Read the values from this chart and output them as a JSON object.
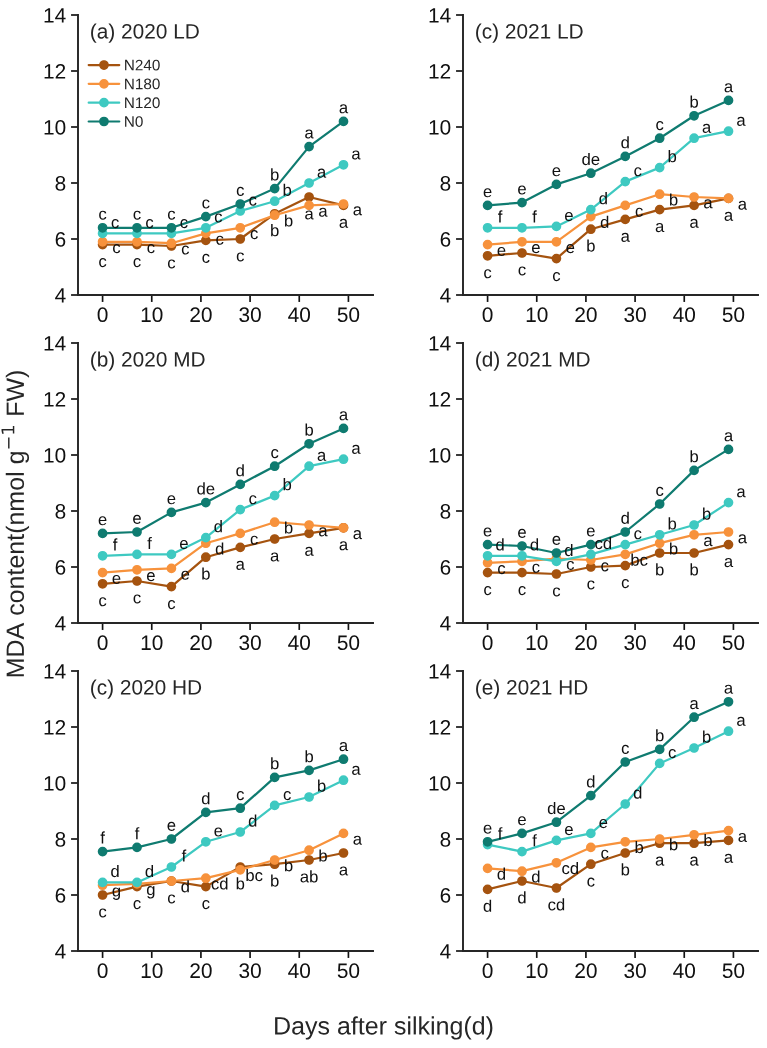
{
  "chart_data": [
    {
      "type": "line",
      "title": "(a) 2020 LD",
      "x": [
        0,
        7,
        14,
        21,
        28,
        35,
        42,
        49
      ],
      "xlim": [
        -5,
        55
      ],
      "xticks": [
        0,
        10,
        20,
        30,
        40,
        50
      ],
      "ylim": [
        4,
        14
      ],
      "yticks": [
        4,
        6,
        8,
        10,
        12,
        14
      ],
      "marker": "circle",
      "line_style": "solid",
      "legend": "top left",
      "grid": false,
      "series": [
        {
          "name": "N240",
          "color": "#a5530f",
          "values": [
            5.8,
            5.8,
            5.75,
            5.95,
            6.0,
            6.9,
            7.5,
            7.2
          ],
          "value_labels": [
            "c",
            "c",
            "c",
            "c",
            "c",
            "b",
            "a",
            "a"
          ]
        },
        {
          "name": "N180",
          "color": "#f7923c",
          "values": [
            5.9,
            5.9,
            5.85,
            6.2,
            6.4,
            6.85,
            7.2,
            7.25
          ],
          "value_labels": [
            "c",
            "c",
            "c",
            "c",
            "c",
            "b",
            "a",
            "a"
          ]
        },
        {
          "name": "N120",
          "color": "#3ec9c1",
          "values": [
            6.2,
            6.2,
            6.2,
            6.4,
            7.0,
            7.35,
            8.0,
            8.65
          ],
          "value_labels": [
            "c",
            "c",
            "c",
            "c",
            "c",
            "b",
            "a",
            "a"
          ]
        },
        {
          "name": "N0",
          "color": "#0f7b70",
          "values": [
            6.4,
            6.4,
            6.4,
            6.8,
            7.25,
            7.8,
            9.3,
            10.2
          ],
          "value_labels": [
            "c",
            "c",
            "c",
            "c",
            "c",
            "b",
            "a",
            "a"
          ]
        }
      ]
    },
    {
      "type": "line",
      "title": "(c) 2021 LD",
      "x": [
        0,
        7,
        14,
        21,
        28,
        35,
        42,
        49
      ],
      "xlim": [
        -5,
        55
      ],
      "xticks": [
        0,
        10,
        20,
        30,
        40,
        50
      ],
      "ylim": [
        4,
        14
      ],
      "yticks": [
        4,
        6,
        8,
        10,
        12,
        14
      ],
      "marker": "circle",
      "line_style": "solid",
      "grid": false,
      "series": [
        {
          "color": "#a5530f",
          "values": [
            5.4,
            5.5,
            5.3,
            6.35,
            6.7,
            7.05,
            7.2,
            7.45
          ],
          "value_labels": [
            "c",
            "c",
            "c",
            "b",
            "a",
            "a",
            "a",
            "a"
          ]
        },
        {
          "color": "#f7923c",
          "values": [
            5.8,
            5.9,
            5.9,
            6.8,
            7.2,
            7.6,
            7.5,
            7.45
          ],
          "value_labels": [
            "e",
            "e",
            "e",
            "d",
            "c",
            "b",
            "a",
            "a"
          ]
        },
        {
          "color": "#3ec9c1",
          "values": [
            6.4,
            6.4,
            6.45,
            7.05,
            8.05,
            8.55,
            9.6,
            9.85
          ],
          "value_labels": [
            "f",
            "f",
            "e",
            "d",
            "c",
            "b",
            "a",
            "a"
          ]
        },
        {
          "color": "#0f7b70",
          "values": [
            7.2,
            7.3,
            7.95,
            8.35,
            8.95,
            9.6,
            10.4,
            10.95
          ],
          "value_labels": [
            "e",
            "e",
            "e",
            "de",
            "d",
            "c",
            "b",
            "a"
          ]
        }
      ]
    },
    {
      "type": "line",
      "title": "(b) 2020 MD",
      "ylabel": "MDA content(nmol g$^{−1}$ FW)",
      "x": [
        0,
        7,
        14,
        21,
        28,
        35,
        42,
        49
      ],
      "xlim": [
        -5,
        55
      ],
      "xticks": [
        0,
        10,
        20,
        30,
        40,
        50
      ],
      "ylim": [
        4,
        14
      ],
      "yticks": [
        4,
        6,
        8,
        10,
        12,
        14
      ],
      "marker": "circle",
      "line_style": "solid",
      "grid": false,
      "series": [
        {
          "color": "#a5530f",
          "values": [
            5.4,
            5.5,
            5.3,
            6.35,
            6.7,
            7.0,
            7.2,
            7.4
          ],
          "value_labels": [
            "c",
            "c",
            "c",
            "b",
            "a",
            "a",
            "a",
            "a"
          ]
        },
        {
          "color": "#f7923c",
          "values": [
            5.8,
            5.9,
            5.95,
            6.85,
            7.2,
            7.6,
            7.5,
            7.4
          ],
          "value_labels": [
            "e",
            "e",
            "e",
            "d",
            "c",
            "b",
            "a",
            "a"
          ]
        },
        {
          "color": "#3ec9c1",
          "values": [
            6.4,
            6.45,
            6.45,
            7.05,
            8.05,
            8.55,
            9.6,
            9.85
          ],
          "value_labels": [
            "f",
            "f",
            "e",
            "d",
            "c",
            "b",
            "a",
            "a"
          ]
        },
        {
          "color": "#0f7b70",
          "values": [
            7.2,
            7.25,
            7.95,
            8.3,
            8.95,
            9.6,
            10.4,
            10.95
          ],
          "value_labels": [
            "e",
            "e",
            "e",
            "de",
            "d",
            "c",
            "b",
            "a"
          ]
        }
      ]
    },
    {
      "type": "line",
      "title": "(d) 2021 MD",
      "x": [
        0,
        7,
        14,
        21,
        28,
        35,
        42,
        49
      ],
      "xlim": [
        -5,
        55
      ],
      "xticks": [
        0,
        10,
        20,
        30,
        40,
        50
      ],
      "ylim": [
        4,
        14
      ],
      "yticks": [
        4,
        6,
        8,
        10,
        12,
        14
      ],
      "marker": "circle",
      "line_style": "solid",
      "grid": false,
      "series": [
        {
          "color": "#a5530f",
          "values": [
            5.8,
            5.8,
            5.75,
            6.0,
            6.05,
            6.5,
            6.5,
            6.8
          ],
          "value_labels": [
            "c",
            "c",
            "c",
            "c",
            "c",
            "b",
            "b",
            "a"
          ]
        },
        {
          "color": "#f7923c",
          "values": [
            6.15,
            6.2,
            6.3,
            6.25,
            6.45,
            6.85,
            7.15,
            7.25
          ],
          "value_labels": [
            "c",
            "c",
            "c",
            "c",
            "bc",
            "b",
            "a",
            "a"
          ]
        },
        {
          "color": "#3ec9c1",
          "values": [
            6.4,
            6.4,
            6.2,
            6.45,
            6.8,
            7.15,
            7.5,
            8.3
          ],
          "value_labels": [
            "d",
            "d",
            "d",
            "cd",
            "c",
            "b",
            "b",
            "a"
          ]
        },
        {
          "color": "#0f7b70",
          "values": [
            6.8,
            6.75,
            6.5,
            6.8,
            7.25,
            8.25,
            9.45,
            10.2
          ],
          "value_labels": [
            "e",
            "e",
            "e",
            "e",
            "d",
            "c",
            "b",
            "a"
          ]
        }
      ]
    },
    {
      "type": "line",
      "title": "(c) 2020 HD",
      "xlabel": "Days after silking(d)",
      "x": [
        0,
        7,
        14,
        21,
        28,
        35,
        42,
        49
      ],
      "xlim": [
        -5,
        55
      ],
      "xticks": [
        0,
        10,
        20,
        30,
        40,
        50
      ],
      "ylim": [
        4,
        14
      ],
      "yticks": [
        4,
        6,
        8,
        10,
        12,
        14
      ],
      "marker": "circle",
      "line_style": "solid",
      "grid": false,
      "series": [
        {
          "color": "#a5530f",
          "values": [
            6.0,
            6.3,
            6.5,
            6.3,
            7.0,
            7.1,
            7.25,
            7.5
          ],
          "value_labels": [
            "c",
            "c",
            "c",
            "c",
            "b",
            "b",
            "ab",
            "a"
          ]
        },
        {
          "color": "#f7923c",
          "values": [
            6.35,
            6.4,
            6.5,
            6.6,
            6.9,
            7.25,
            7.6,
            8.2
          ],
          "value_labels": [
            "g",
            "g",
            "d",
            "cd",
            "bc",
            "b",
            "b",
            "a"
          ]
        },
        {
          "color": "#3ec9c1",
          "values": [
            6.45,
            6.45,
            7.0,
            7.9,
            8.25,
            9.2,
            9.5,
            10.1
          ],
          "value_labels": [
            "d",
            "d",
            "f",
            "e",
            "d",
            "c",
            "b",
            "a"
          ]
        },
        {
          "color": "#0f7b70",
          "values": [
            7.55,
            7.7,
            8.0,
            8.95,
            9.1,
            10.2,
            10.45,
            10.85
          ],
          "value_labels": [
            "f",
            "f",
            "e",
            "d",
            "c",
            "b",
            "b",
            "a"
          ]
        }
      ]
    },
    {
      "type": "line",
      "title": "(e) 2021 HD",
      "x": [
        0,
        7,
        14,
        21,
        28,
        35,
        42,
        49
      ],
      "xlim": [
        -5,
        55
      ],
      "xticks": [
        0,
        10,
        20,
        30,
        40,
        50
      ],
      "ylim": [
        4,
        14
      ],
      "yticks": [
        4,
        6,
        8,
        10,
        12,
        14
      ],
      "marker": "circle",
      "line_style": "solid",
      "grid": false,
      "series": [
        {
          "color": "#a5530f",
          "values": [
            6.2,
            6.5,
            6.25,
            7.1,
            7.5,
            7.85,
            7.85,
            7.95
          ],
          "value_labels": [
            "d",
            "d",
            "cd",
            "c",
            "b",
            "a",
            "a",
            "a"
          ]
        },
        {
          "color": "#f7923c",
          "values": [
            6.95,
            6.85,
            7.15,
            7.7,
            7.9,
            8.0,
            8.15,
            8.3
          ],
          "value_labels": [
            "d",
            "d",
            "cd",
            "c",
            "b",
            "b",
            "b",
            "a"
          ]
        },
        {
          "color": "#3ec9c1",
          "values": [
            7.8,
            7.55,
            7.95,
            8.2,
            9.25,
            10.7,
            11.25,
            11.85
          ],
          "value_labels": [
            "f",
            "f",
            "e",
            "e",
            "d",
            "c",
            "b",
            "a"
          ]
        },
        {
          "color": "#0f7b70",
          "values": [
            7.9,
            8.2,
            8.6,
            9.55,
            10.75,
            11.2,
            12.35,
            12.9
          ],
          "value_labels": [
            "e",
            "e",
            "de",
            "d",
            "c",
            "b",
            "a",
            "a"
          ]
        }
      ]
    }
  ]
}
